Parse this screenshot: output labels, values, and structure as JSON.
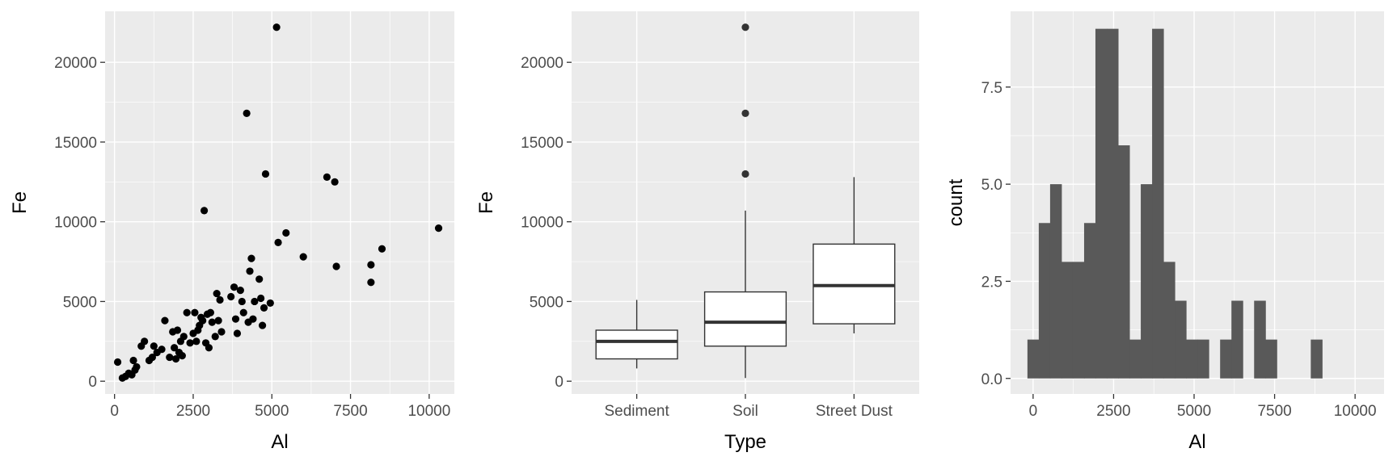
{
  "chart_data": [
    {
      "type": "scatter",
      "xlabel": "Al",
      "ylabel": "Fe",
      "xlim": [
        -300,
        10800
      ],
      "ylim": [
        -800,
        23200
      ],
      "xticks": [
        0,
        2500,
        5000,
        7500,
        10000
      ],
      "yticks": [
        0,
        5000,
        10000,
        15000,
        20000
      ],
      "xtick_labels": [
        "0",
        "2500",
        "5000",
        "7500",
        "10000"
      ],
      "ytick_labels": [
        "0",
        "5000",
        "10000",
        "15000",
        "20000"
      ],
      "grid": true,
      "point_color": "#000000",
      "points": [
        [
          100,
          1200
        ],
        [
          250,
          200
        ],
        [
          350,
          300
        ],
        [
          450,
          500
        ],
        [
          550,
          400
        ],
        [
          600,
          1300
        ],
        [
          650,
          700
        ],
        [
          700,
          900
        ],
        [
          850,
          2200
        ],
        [
          950,
          2500
        ],
        [
          1100,
          1300
        ],
        [
          1200,
          1500
        ],
        [
          1250,
          2200
        ],
        [
          1350,
          1800
        ],
        [
          1500,
          2000
        ],
        [
          1600,
          3800
        ],
        [
          1750,
          1500
        ],
        [
          1850,
          3100
        ],
        [
          1900,
          2100
        ],
        [
          1950,
          1400
        ],
        [
          2000,
          3200
        ],
        [
          2050,
          1800
        ],
        [
          2100,
          2500
        ],
        [
          2150,
          1600
        ],
        [
          2200,
          2800
        ],
        [
          2300,
          4300
        ],
        [
          2400,
          2400
        ],
        [
          2500,
          3000
        ],
        [
          2550,
          4300
        ],
        [
          2600,
          2500
        ],
        [
          2650,
          3200
        ],
        [
          2700,
          3500
        ],
        [
          2750,
          4000
        ],
        [
          2800,
          3800
        ],
        [
          2850,
          10700
        ],
        [
          2900,
          2400
        ],
        [
          2950,
          4200
        ],
        [
          3000,
          2100
        ],
        [
          3050,
          4300
        ],
        [
          3100,
          3700
        ],
        [
          3200,
          2800
        ],
        [
          3250,
          5500
        ],
        [
          3300,
          3800
        ],
        [
          3350,
          5100
        ],
        [
          3400,
          3100
        ],
        [
          3700,
          5300
        ],
        [
          3800,
          5900
        ],
        [
          3850,
          3900
        ],
        [
          3900,
          3000
        ],
        [
          4000,
          5700
        ],
        [
          4050,
          5000
        ],
        [
          4100,
          4300
        ],
        [
          4200,
          16800
        ],
        [
          4250,
          3700
        ],
        [
          4300,
          6900
        ],
        [
          4350,
          7700
        ],
        [
          4400,
          3900
        ],
        [
          4450,
          5000
        ],
        [
          4600,
          6400
        ],
        [
          4650,
          5200
        ],
        [
          4700,
          3500
        ],
        [
          4750,
          4600
        ],
        [
          4800,
          13000
        ],
        [
          4950,
          4900
        ],
        [
          5150,
          22200
        ],
        [
          5200,
          8700
        ],
        [
          5450,
          9300
        ],
        [
          6000,
          7800
        ],
        [
          6750,
          12800
        ],
        [
          7000,
          12500
        ],
        [
          7050,
          7200
        ],
        [
          8150,
          7300
        ],
        [
          8150,
          6200
        ],
        [
          8500,
          8300
        ],
        [
          10300,
          9600
        ]
      ]
    },
    {
      "type": "box",
      "xlabel": "Type",
      "ylabel": "Fe",
      "categories": [
        "Sediment",
        "Soil",
        "Street Dust"
      ],
      "ylim": [
        -800,
        23200
      ],
      "yticks": [
        0,
        5000,
        10000,
        15000,
        20000
      ],
      "ytick_labels": [
        "0",
        "5000",
        "10000",
        "15000",
        "20000"
      ],
      "grid": true,
      "boxes": [
        {
          "category": "Sediment",
          "whisker_low": 800,
          "q1": 1400,
          "median": 2500,
          "q3": 3200,
          "whisker_high": 5100,
          "outliers": []
        },
        {
          "category": "Soil",
          "whisker_low": 200,
          "q1": 2200,
          "median": 3700,
          "q3": 5600,
          "whisker_high": 10700,
          "outliers": [
            13000,
            16800,
            22200
          ]
        },
        {
          "category": "Street Dust",
          "whisker_low": 3000,
          "q1": 3600,
          "median": 6000,
          "q3": 8600,
          "whisker_high": 12800,
          "outliers": []
        }
      ]
    },
    {
      "type": "histogram",
      "xlabel": "Al",
      "ylabel": "count",
      "xlim": [
        -700,
        10900
      ],
      "ylim": [
        -0.4,
        9.45
      ],
      "xticks": [
        0,
        2500,
        5000,
        7500,
        10000
      ],
      "xtick_labels": [
        "0",
        "2500",
        "5000",
        "7500",
        "10000"
      ],
      "yticks": [
        0,
        2.5,
        5,
        7.5
      ],
      "ytick_labels": [
        "0.0",
        "2.5",
        "5.0",
        "7.5"
      ],
      "grid": true,
      "bar_color": "#595959",
      "bin_start": -176,
      "bin_width": 352,
      "counts": [
        1,
        4,
        5,
        3,
        3,
        4,
        9,
        9,
        6,
        1,
        5,
        9,
        3,
        2,
        1,
        1,
        0,
        1,
        2,
        0,
        2,
        1,
        0,
        0,
        0,
        1
      ]
    }
  ]
}
